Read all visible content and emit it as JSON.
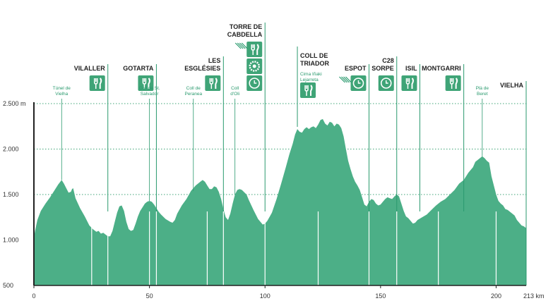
{
  "colors": {
    "profile": "#4caf87",
    "profile_light": "#5bb994",
    "accent": "#2a9a6e",
    "icon_bg": "#3fa477",
    "grid": "#3fa477",
    "axis": "#222222"
  },
  "chart_data": {
    "type": "area",
    "xlim": [
      0,
      213
    ],
    "ylim": [
      500,
      2500
    ],
    "y_ticks": [
      {
        "value": 500,
        "label": "500"
      },
      {
        "value": 1000,
        "label": "1.000"
      },
      {
        "value": 1500,
        "label": "1.500"
      },
      {
        "value": 2000,
        "label": "2.000"
      },
      {
        "value": 2500,
        "label": "2.500 m"
      }
    ],
    "x_ticks": [
      {
        "value": 0,
        "label": "0"
      },
      {
        "value": 50,
        "label": "50"
      },
      {
        "value": 100,
        "label": "100"
      },
      {
        "value": 150,
        "label": "150"
      },
      {
        "value": 200,
        "label": "200"
      },
      {
        "value": 213,
        "label": "213 km"
      }
    ],
    "grid_lines": [
      1500,
      2000,
      2500
    ],
    "profile": [
      [
        0,
        1020
      ],
      [
        0.5,
        1100
      ],
      [
        1.5,
        1220
      ],
      [
        3,
        1320
      ],
      [
        5,
        1400
      ],
      [
        7,
        1470
      ],
      [
        9,
        1550
      ],
      [
        10.5,
        1610
      ],
      [
        12,
        1660
      ],
      [
        13,
        1620
      ],
      [
        14,
        1570
      ],
      [
        15,
        1520
      ],
      [
        16,
        1530
      ],
      [
        16.5,
        1560
      ],
      [
        17,
        1570
      ],
      [
        18,
        1460
      ],
      [
        20,
        1350
      ],
      [
        22,
        1260
      ],
      [
        24,
        1160
      ],
      [
        25.5,
        1120
      ],
      [
        27,
        1090
      ],
      [
        28,
        1100
      ],
      [
        29,
        1070
      ],
      [
        30,
        1080
      ],
      [
        31,
        1060
      ],
      [
        32,
        1040
      ],
      [
        33,
        1040
      ],
      [
        34,
        1100
      ],
      [
        35,
        1200
      ],
      [
        36,
        1300
      ],
      [
        37,
        1370
      ],
      [
        38,
        1380
      ],
      [
        39,
        1320
      ],
      [
        40,
        1200
      ],
      [
        41,
        1120
      ],
      [
        42,
        1100
      ],
      [
        43,
        1110
      ],
      [
        44,
        1180
      ],
      [
        45,
        1260
      ],
      [
        46,
        1320
      ],
      [
        47,
        1360
      ],
      [
        48,
        1400
      ],
      [
        49,
        1420
      ],
      [
        50,
        1430
      ],
      [
        51,
        1420
      ],
      [
        52,
        1390
      ],
      [
        53,
        1350
      ],
      [
        54,
        1310
      ],
      [
        55,
        1280
      ],
      [
        57,
        1230
      ],
      [
        59,
        1200
      ],
      [
        60,
        1190
      ],
      [
        61,
        1220
      ],
      [
        62,
        1290
      ],
      [
        64,
        1380
      ],
      [
        66,
        1450
      ],
      [
        68,
        1540
      ],
      [
        70,
        1600
      ],
      [
        72,
        1640
      ],
      [
        73,
        1660
      ],
      [
        74,
        1640
      ],
      [
        75,
        1600
      ],
      [
        76,
        1560
      ],
      [
        77,
        1560
      ],
      [
        78,
        1590
      ],
      [
        79,
        1580
      ],
      [
        80,
        1530
      ],
      [
        81,
        1450
      ],
      [
        82,
        1340
      ],
      [
        83,
        1250
      ],
      [
        84,
        1220
      ],
      [
        85,
        1290
      ],
      [
        86,
        1400
      ],
      [
        87,
        1500
      ],
      [
        88,
        1550
      ],
      [
        89,
        1560
      ],
      [
        90,
        1550
      ],
      [
        92,
        1500
      ],
      [
        93,
        1440
      ],
      [
        95,
        1330
      ],
      [
        97,
        1230
      ],
      [
        99,
        1170
      ],
      [
        100,
        1180
      ],
      [
        101,
        1210
      ],
      [
        103,
        1300
      ],
      [
        105,
        1450
      ],
      [
        107,
        1620
      ],
      [
        109,
        1800
      ],
      [
        110.5,
        1940
      ],
      [
        112,
        2060
      ],
      [
        113,
        2160
      ],
      [
        114,
        2220
      ],
      [
        115,
        2190
      ],
      [
        116,
        2180
      ],
      [
        117,
        2220
      ],
      [
        118,
        2240
      ],
      [
        119,
        2220
      ],
      [
        120,
        2240
      ],
      [
        121,
        2250
      ],
      [
        122,
        2230
      ],
      [
        123,
        2270
      ],
      [
        124,
        2320
      ],
      [
        125,
        2330
      ],
      [
        126,
        2280
      ],
      [
        127,
        2260
      ],
      [
        128,
        2300
      ],
      [
        129,
        2290
      ],
      [
        130,
        2250
      ],
      [
        131,
        2280
      ],
      [
        132,
        2270
      ],
      [
        133,
        2230
      ],
      [
        134,
        2140
      ],
      [
        135,
        2000
      ],
      [
        136,
        1870
      ],
      [
        137,
        1780
      ],
      [
        138,
        1700
      ],
      [
        139,
        1640
      ],
      [
        140,
        1600
      ],
      [
        141,
        1550
      ],
      [
        142,
        1470
      ],
      [
        143,
        1390
      ],
      [
        144,
        1370
      ],
      [
        145,
        1420
      ],
      [
        146,
        1450
      ],
      [
        147,
        1440
      ],
      [
        148,
        1400
      ],
      [
        149,
        1380
      ],
      [
        150,
        1390
      ],
      [
        151,
        1420
      ],
      [
        152,
        1450
      ],
      [
        153,
        1470
      ],
      [
        154,
        1460
      ],
      [
        155,
        1450
      ],
      [
        156,
        1480
      ],
      [
        157,
        1500
      ],
      [
        158,
        1480
      ],
      [
        159,
        1400
      ],
      [
        160,
        1320
      ],
      [
        161,
        1260
      ],
      [
        162,
        1240
      ],
      [
        163,
        1210
      ],
      [
        164,
        1180
      ],
      [
        165,
        1190
      ],
      [
        166,
        1220
      ],
      [
        168,
        1250
      ],
      [
        170,
        1280
      ],
      [
        172,
        1330
      ],
      [
        174,
        1380
      ],
      [
        176,
        1420
      ],
      [
        178,
        1450
      ],
      [
        180,
        1500
      ],
      [
        182,
        1550
      ],
      [
        184,
        1620
      ],
      [
        186,
        1660
      ],
      [
        188,
        1740
      ],
      [
        190,
        1800
      ],
      [
        191,
        1860
      ],
      [
        192,
        1880
      ],
      [
        193,
        1900
      ],
      [
        194,
        1920
      ],
      [
        195,
        1900
      ],
      [
        196,
        1870
      ],
      [
        197,
        1850
      ],
      [
        198,
        1700
      ],
      [
        199,
        1600
      ],
      [
        200,
        1500
      ],
      [
        201,
        1430
      ],
      [
        202,
        1400
      ],
      [
        203,
        1380
      ],
      [
        204,
        1340
      ],
      [
        205,
        1330
      ],
      [
        206,
        1310
      ],
      [
        207,
        1290
      ],
      [
        208,
        1270
      ],
      [
        209,
        1220
      ],
      [
        210,
        1190
      ],
      [
        211,
        1160
      ],
      [
        212,
        1150
      ],
      [
        213,
        1130
      ]
    ],
    "dividers_km": [
      25,
      32,
      50,
      53,
      75,
      82,
      100,
      123,
      145,
      157,
      175,
      200
    ],
    "places": [
      {
        "km": 32,
        "name_lines": [
          "VILALLER"
        ],
        "icons": [
          "cutlery-icon"
        ]
      },
      {
        "km": 53,
        "name_lines": [
          "GOTARTA"
        ],
        "icons": [
          "cutlery-icon"
        ]
      },
      {
        "km": 82,
        "name_lines": [
          "LES",
          "ESGLÉSIES"
        ],
        "icons": [
          "cutlery-icon"
        ]
      },
      {
        "km": 100,
        "name_lines": [
          "TORRE DE",
          "CABDELLA"
        ],
        "icons": [
          "cutlery-icon",
          "settings-icon",
          "clock-icon"
        ],
        "sprint": true
      },
      {
        "km": 145,
        "name_lines": [
          "ESPOT"
        ],
        "icons": [
          "clock-icon"
        ],
        "sprint": true
      },
      {
        "km": 157,
        "name_lines": [
          "C28",
          "SORPE"
        ],
        "icons": [
          "clock-icon"
        ]
      },
      {
        "km": 167,
        "name_lines": [
          "ISIL"
        ],
        "icons": [
          "cutlery-icon"
        ]
      },
      {
        "km": 186,
        "name_lines": [
          "MONTGARRI"
        ],
        "icons": [
          "cutlery-icon"
        ]
      },
      {
        "km": 213,
        "name_lines": [
          "VIELHA"
        ],
        "icons": []
      }
    ],
    "coll_de_triador": {
      "km": 114,
      "name_lines": [
        "COLL DE",
        "TRIADOR"
      ],
      "sub_lines": [
        "Cima Iñaki",
        "Lejarreta"
      ],
      "icons": [
        "cutlery-icon"
      ]
    },
    "passes": [
      {
        "km": 12,
        "lines": [
          "Túnel de",
          "Vielha"
        ]
      },
      {
        "km": 50,
        "lines": [
          "Coll de St.",
          "Salvador"
        ]
      },
      {
        "km": 69,
        "lines": [
          "Coll de",
          "Peranea"
        ]
      },
      {
        "km": 87,
        "lines": [
          "Coll",
          "d'Oli"
        ]
      },
      {
        "km": 194,
        "lines": [
          "Plà de",
          "Beret"
        ]
      }
    ]
  }
}
